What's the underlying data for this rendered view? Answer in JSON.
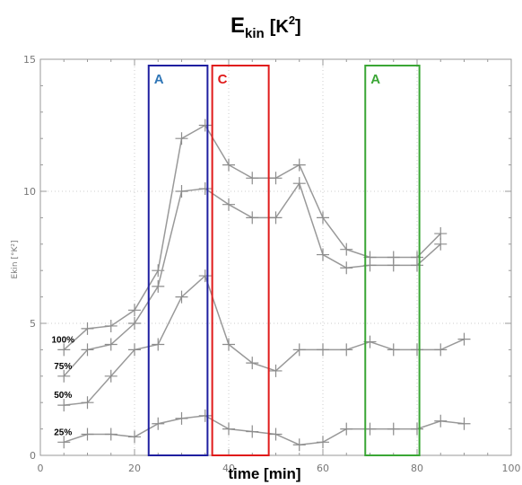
{
  "chart_data": {
    "type": "line",
    "title": "E",
    "title_sub": "kin",
    "title_unit_open": "[K",
    "title_unit_sup": "2",
    "title_unit_close": "]",
    "xlabel": "time [min]",
    "ylabel": "Ekin [°K²]",
    "xlim": [
      0,
      100
    ],
    "ylim": [
      0,
      15
    ],
    "xticks": [
      "0",
      "20",
      "40",
      "60",
      "80",
      "100"
    ],
    "yticks": [
      "0",
      "5",
      "10",
      "15"
    ],
    "grid": true,
    "line_color": "#999999",
    "series": [
      {
        "name": "100%",
        "x": [
          5,
          10,
          15,
          20,
          25,
          30,
          35,
          40,
          45,
          50,
          55,
          60,
          65,
          70,
          75,
          80,
          85
        ],
        "y": [
          4.0,
          4.8,
          4.9,
          5.5,
          7.0,
          12.0,
          12.5,
          11.0,
          10.5,
          10.5,
          11.0,
          9.0,
          7.8,
          7.5,
          7.5,
          7.5,
          8.4
        ]
      },
      {
        "name": "75%",
        "x": [
          5,
          10,
          15,
          20,
          25,
          30,
          35,
          40,
          45,
          50,
          55,
          60,
          65,
          70,
          75,
          80,
          85
        ],
        "y": [
          3.0,
          4.0,
          4.2,
          5.0,
          6.4,
          10.0,
          10.1,
          9.5,
          9.0,
          9.0,
          10.3,
          7.6,
          7.1,
          7.2,
          7.2,
          7.2,
          8.0
        ]
      },
      {
        "name": "50%",
        "x": [
          5,
          10,
          15,
          20,
          25,
          30,
          35,
          40,
          45,
          50,
          55,
          60,
          65,
          70,
          75,
          80,
          85,
          90
        ],
        "y": [
          1.9,
          2.0,
          3.0,
          4.0,
          4.2,
          6.0,
          6.8,
          4.2,
          3.5,
          3.2,
          4.0,
          4.0,
          4.0,
          4.3,
          4.0,
          4.0,
          4.0,
          4.4
        ]
      },
      {
        "name": "25%",
        "x": [
          5,
          10,
          15,
          20,
          25,
          30,
          35,
          40,
          45,
          50,
          55,
          60,
          65,
          70,
          75,
          80,
          85,
          90
        ],
        "y": [
          0.5,
          0.8,
          0.8,
          0.7,
          1.2,
          1.4,
          1.5,
          1.0,
          0.9,
          0.8,
          0.4,
          0.5,
          1.0,
          1.0,
          1.0,
          1.0,
          1.3,
          1.2
        ]
      }
    ],
    "regions": [
      {
        "label": "A",
        "x0": 23,
        "x1": 35.5,
        "color": "#1f1fa0",
        "label_color": "#2e75b6"
      },
      {
        "label": "C",
        "x0": 36.5,
        "x1": 48.5,
        "color": "#e01a1a",
        "label_color": "#e01a1a"
      },
      {
        "label": "A",
        "x0": 69,
        "x1": 80.5,
        "color": "#3aa635",
        "label_color": "#3aa635"
      }
    ]
  }
}
